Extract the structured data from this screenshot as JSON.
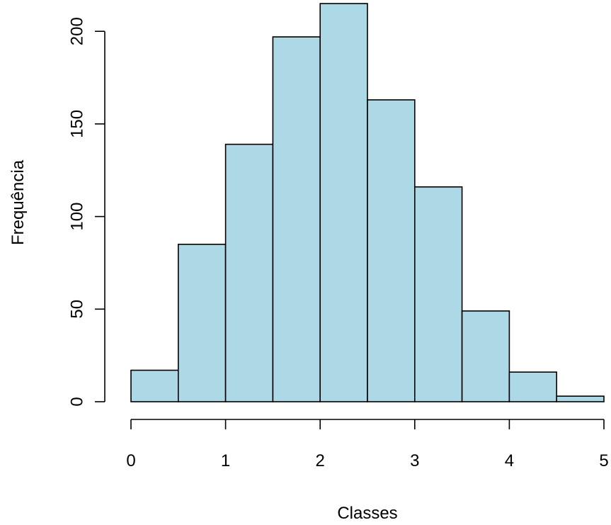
{
  "chart_data": {
    "type": "bar",
    "bins": [
      {
        "from": 0.0,
        "to": 0.5,
        "count": 17
      },
      {
        "from": 0.5,
        "to": 1.0,
        "count": 85
      },
      {
        "from": 1.0,
        "to": 1.5,
        "count": 139
      },
      {
        "from": 1.5,
        "to": 2.0,
        "count": 197
      },
      {
        "from": 2.0,
        "to": 2.5,
        "count": 215
      },
      {
        "from": 2.5,
        "to": 3.0,
        "count": 163
      },
      {
        "from": 3.0,
        "to": 3.5,
        "count": 116
      },
      {
        "from": 3.5,
        "to": 4.0,
        "count": 49
      },
      {
        "from": 4.0,
        "to": 4.5,
        "count": 16
      },
      {
        "from": 4.5,
        "to": 5.0,
        "count": 3
      }
    ],
    "xlabel": "Classes",
    "ylabel": "Frequência",
    "xlim": [
      0,
      5
    ],
    "ylim": [
      0,
      215
    ],
    "x_ticks": [
      0,
      1,
      2,
      3,
      4,
      5
    ],
    "y_ticks": [
      0,
      50,
      100,
      150,
      200
    ],
    "bar_color": "#add8e6",
    "grid": false
  }
}
